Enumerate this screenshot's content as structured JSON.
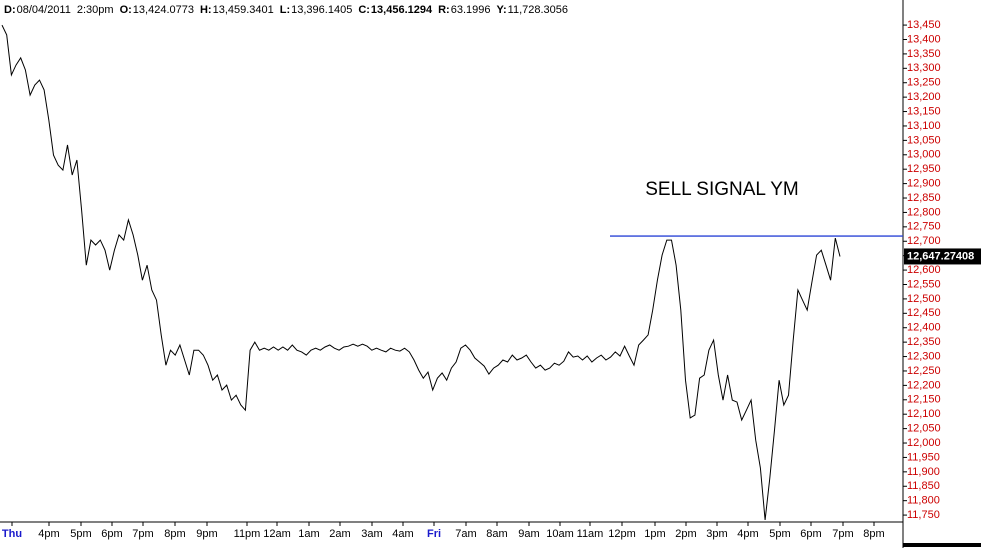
{
  "chart_data": {
    "type": "line",
    "header": [
      {
        "key": "D:",
        "text": "08/04/2011"
      },
      {
        "text": "2:30pm"
      },
      {
        "key": "O:",
        "text": "13,424.0773"
      },
      {
        "key": "H:",
        "text": "13,459.3401"
      },
      {
        "key": "L:",
        "text": "13,396.1405"
      },
      {
        "key": "C:",
        "text": "13,456.1294",
        "bold": true
      },
      {
        "key": "R:",
        "text": "63.1996"
      },
      {
        "key": "Y:",
        "text": "11,728.3056"
      }
    ],
    "annotation": "SELL SIGNAL YM",
    "hline": {
      "value": 12718,
      "color": "#2b45d6"
    },
    "last": {
      "value": 12647.27408,
      "label": "12,647.27408"
    },
    "x_labels": [
      "Thu",
      "4pm",
      "5pm",
      "6pm",
      "7pm",
      "8pm",
      "9pm",
      "11pm",
      "12am",
      "1am",
      "2am",
      "3am",
      "4am",
      "Fri",
      "7am",
      "8am",
      "9am",
      "10am",
      "11am",
      "12pm",
      "1pm",
      "2pm",
      "3pm",
      "4pm",
      "5pm",
      "6pm",
      "7pm",
      "8pm"
    ],
    "x_label_emphasis": [
      0,
      13
    ],
    "emphasis_color": "#1a1acc",
    "axis_label_color": "#cc0000",
    "color": "#000000",
    "ylim": [
      11726,
      13537
    ],
    "yticks": [
      {
        "value": 13450,
        "label": "13,450"
      },
      {
        "value": 13400,
        "label": "13,400"
      },
      {
        "value": 13350,
        "label": "13,350"
      },
      {
        "value": 13300,
        "label": "13,300"
      },
      {
        "value": 13250,
        "label": "13,250"
      },
      {
        "value": 13200,
        "label": "13,200"
      },
      {
        "value": 13150,
        "label": "13,150"
      },
      {
        "value": 13100,
        "label": "13,100"
      },
      {
        "value": 13050,
        "label": "13,050"
      },
      {
        "value": 13000,
        "label": "13,000"
      },
      {
        "value": 12950,
        "label": "12,950"
      },
      {
        "value": 12900,
        "label": "12,900"
      },
      {
        "value": 12850,
        "label": "12,850"
      },
      {
        "value": 12800,
        "label": "12,800"
      },
      {
        "value": 12750,
        "label": "12,750"
      },
      {
        "value": 12700,
        "label": "12,700"
      },
      {
        "value": 12650,
        "label": "12,650"
      },
      {
        "value": 12600,
        "label": "12,600"
      },
      {
        "value": 12550,
        "label": "12,550"
      },
      {
        "value": 12500,
        "label": "12,500"
      },
      {
        "value": 12450,
        "label": "12,450"
      },
      {
        "value": 12400,
        "label": "12,400"
      },
      {
        "value": 12350,
        "label": "12,350"
      },
      {
        "value": 12300,
        "label": "12,300"
      },
      {
        "value": 12250,
        "label": "12,250"
      },
      {
        "value": 12200,
        "label": "12,200"
      },
      {
        "value": 12150,
        "label": "12,150"
      },
      {
        "value": 12100,
        "label": "12,100"
      },
      {
        "value": 12050,
        "label": "12,050"
      },
      {
        "value": 12000,
        "label": "12,000"
      },
      {
        "value": 11950,
        "label": "11,950"
      },
      {
        "value": 11900,
        "label": "11,900"
      },
      {
        "value": 11850,
        "label": "11,850"
      },
      {
        "value": 11800,
        "label": "11,800"
      },
      {
        "value": 11750,
        "label": "11,750"
      }
    ],
    "values": [
      13450,
      13416,
      13277,
      13311,
      13336,
      13294,
      13207,
      13242,
      13259,
      13225,
      13121,
      12999,
      12964,
      12947,
      13034,
      12930,
      12982,
      12808,
      12617,
      12704,
      12687,
      12704,
      12669,
      12600,
      12669,
      12722,
      12704,
      12774,
      12722,
      12652,
      12565,
      12617,
      12531,
      12496,
      12375,
      12270,
      12322,
      12305,
      12340,
      12288,
      12236,
      12322,
      12322,
      12305,
      12270,
      12218,
      12236,
      12184,
      12201,
      12149,
      12166,
      12132,
      12114,
      12322,
      12350,
      12322,
      12329,
      12322,
      12333,
      12322,
      12333,
      12322,
      12340,
      12322,
      12316,
      12305,
      12322,
      12329,
      12322,
      12333,
      12340,
      12329,
      12322,
      12333,
      12336,
      12343,
      12336,
      12343,
      12336,
      12322,
      12329,
      12322,
      12316,
      12329,
      12322,
      12319,
      12329,
      12316,
      12288,
      12253,
      12225,
      12246,
      12184,
      12225,
      12243,
      12218,
      12260,
      12281,
      12329,
      12340,
      12322,
      12295,
      12281,
      12267,
      12239,
      12260,
      12270,
      12288,
      12281,
      12305,
      12288,
      12295,
      12305,
      12281,
      12260,
      12270,
      12253,
      12260,
      12277,
      12270,
      12284,
      12316,
      12298,
      12302,
      12288,
      12302,
      12281,
      12295,
      12305,
      12288,
      12298,
      12316,
      12302,
      12336,
      12302,
      12270,
      12340,
      12357,
      12375,
      12461,
      12565,
      12652,
      12704,
      12704,
      12617,
      12461,
      12218,
      12087,
      12097,
      12225,
      12236,
      12322,
      12357,
      12236,
      12149,
      12236,
      12149,
      12142,
      12080,
      12114,
      12149,
      12010,
      11913,
      11733,
      11878,
      12045,
      12218,
      12132,
      12166,
      12357,
      12531,
      12496,
      12461,
      12558,
      12652,
      12669,
      12617,
      12565,
      12711,
      12647
    ]
  }
}
